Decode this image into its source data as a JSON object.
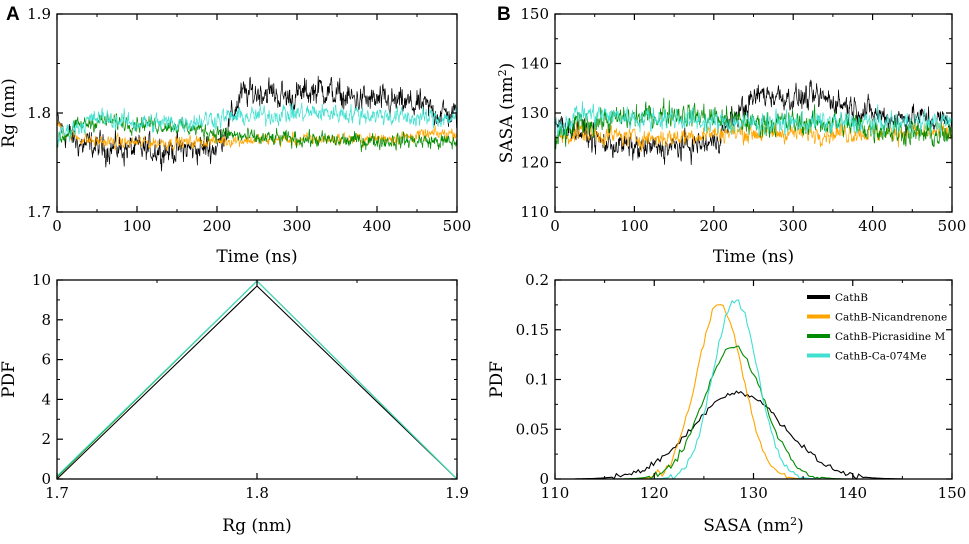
{
  "figure_labels": {
    "a": "A",
    "b": "B"
  },
  "legend": [
    "CathB",
    "CathB-Nicandrenone",
    "CathB-Picrasidine M",
    "CathB-Ca-074Me"
  ],
  "colors": {
    "CathB": "#000000",
    "CathB-Nicandrenone": "#FFA500",
    "CathB-Picrasidine M": "#008C00",
    "CathB-Ca-074Me": "#40E0D0"
  },
  "chart_data": [
    {
      "id": "rg_time",
      "type": "line",
      "title": "",
      "xlabel": "Time (ns)",
      "ylabel": "Rg (nm)",
      "xlim": [
        0,
        500
      ],
      "ylim": [
        1.7,
        1.9
      ],
      "xticks": [
        "0",
        "100",
        "200",
        "300",
        "400",
        "500"
      ],
      "yticks": [
        "1.7",
        "1.8",
        "1.9"
      ],
      "series": [
        {
          "name": "CathB",
          "x": [
            0,
            10,
            30,
            60,
            100,
            150,
            200,
            215,
            230,
            260,
            290,
            330,
            360,
            400,
            450,
            480,
            500
          ],
          "y": [
            1.79,
            1.78,
            1.768,
            1.765,
            1.763,
            1.763,
            1.765,
            1.79,
            1.818,
            1.822,
            1.815,
            1.825,
            1.815,
            1.812,
            1.808,
            1.8,
            1.797
          ]
        },
        {
          "name": "CathB-Nicandrenone",
          "x": [
            0,
            10,
            40,
            80,
            120,
            160,
            200,
            250,
            300,
            350,
            400,
            450,
            500
          ],
          "y": [
            1.79,
            1.78,
            1.772,
            1.77,
            1.77,
            1.77,
            1.772,
            1.773,
            1.773,
            1.774,
            1.774,
            1.777,
            1.78
          ]
        },
        {
          "name": "CathB-Picrasidine M",
          "x": [
            0,
            20,
            50,
            100,
            150,
            200,
            250,
            300,
            350,
            400,
            450,
            500
          ],
          "y": [
            1.77,
            1.785,
            1.792,
            1.79,
            1.787,
            1.78,
            1.774,
            1.774,
            1.772,
            1.772,
            1.772,
            1.77
          ]
        },
        {
          "name": "CathB-Ca-074Me",
          "x": [
            0,
            20,
            50,
            100,
            150,
            200,
            250,
            300,
            350,
            400,
            450,
            500
          ],
          "y": [
            1.775,
            1.785,
            1.795,
            1.79,
            1.79,
            1.795,
            1.797,
            1.8,
            1.8,
            1.798,
            1.795,
            1.795
          ]
        }
      ]
    },
    {
      "id": "sasa_time",
      "type": "line",
      "title": "",
      "xlabel": "Time (ns)",
      "ylabel": "SASA (nm2)",
      "xlim": [
        0,
        500
      ],
      "ylim": [
        110,
        150
      ],
      "xticks": [
        "0",
        "100",
        "200",
        "300",
        "400",
        "500"
      ],
      "yticks": [
        "110",
        "120",
        "130",
        "140",
        "150"
      ],
      "series": [
        {
          "name": "CathB",
          "x": [
            0,
            20,
            60,
            100,
            150,
            200,
            230,
            260,
            300,
            340,
            380,
            420,
            460,
            500
          ],
          "y": [
            128,
            127,
            124,
            123,
            123,
            124,
            130,
            134,
            133,
            133,
            131,
            129,
            129,
            128
          ]
        },
        {
          "name": "CathB-Nicandrenone",
          "x": [
            0,
            30,
            100,
            150,
            200,
            250,
            300,
            350,
            400,
            450,
            500
          ],
          "y": [
            125,
            126,
            125,
            125,
            126,
            126,
            126,
            126,
            126,
            126,
            126
          ]
        },
        {
          "name": "CathB-Picrasidine M",
          "x": [
            0,
            30,
            100,
            150,
            200,
            250,
            300,
            350,
            400,
            450,
            500
          ],
          "y": [
            124,
            128,
            129,
            130,
            129,
            128,
            128,
            128,
            127,
            126,
            125
          ]
        },
        {
          "name": "CathB-Ca-074Me",
          "x": [
            0,
            30,
            100,
            150,
            200,
            250,
            300,
            350,
            400,
            450,
            500
          ],
          "y": [
            127,
            130,
            129,
            129,
            128,
            128,
            128,
            128,
            128,
            128,
            128
          ]
        }
      ]
    },
    {
      "id": "rg_pdf",
      "type": "line",
      "title": "",
      "xlabel": "Rg (nm)",
      "ylabel": "PDF",
      "xlim": [
        1.7,
        1.9
      ],
      "ylim": [
        0,
        10
      ],
      "xticks": [
        "1.7",
        "1.8",
        "1.9"
      ],
      "yticks": [
        "0",
        "2",
        "4",
        "6",
        "8",
        "10"
      ],
      "series": [
        {
          "name": "CathB",
          "x": [
            1.7,
            1.8,
            1.9
          ],
          "y": [
            0,
            9.7,
            0
          ]
        },
        {
          "name": "CathB-Nicandrenone",
          "x": [
            1.7,
            1.8,
            1.9
          ],
          "y": [
            0.1,
            9.95,
            0
          ]
        },
        {
          "name": "CathB-Picrasidine M",
          "x": [
            1.7,
            1.8,
            1.9
          ],
          "y": [
            0.1,
            9.95,
            0
          ]
        },
        {
          "name": "CathB-Ca-074Me",
          "x": [
            1.7,
            1.8,
            1.9
          ],
          "y": [
            0.15,
            9.95,
            0
          ]
        }
      ]
    },
    {
      "id": "sasa_pdf",
      "type": "line",
      "title": "",
      "xlabel": "SASA (nm2)",
      "ylabel": "PDF",
      "xlim": [
        110,
        150
      ],
      "ylim": [
        0,
        0.2
      ],
      "xticks": [
        "110",
        "120",
        "130",
        "140",
        "150"
      ],
      "yticks": [
        "0",
        "0.05",
        "0.1",
        "0.15",
        "0.2"
      ],
      "series": [
        {
          "name": "CathB",
          "mean": 128.5,
          "sd": 4.6,
          "peak": 0.087
        },
        {
          "name": "CathB-Nicandrenone",
          "mean": 126.6,
          "sd": 2.3,
          "peak": 0.175
        },
        {
          "name": "CathB-Picrasidine M",
          "mean": 128.0,
          "sd": 3.0,
          "peak": 0.133
        },
        {
          "name": "CathB-Ca-074Me",
          "mean": 128.2,
          "sd": 2.2,
          "peak": 0.18
        }
      ]
    }
  ]
}
